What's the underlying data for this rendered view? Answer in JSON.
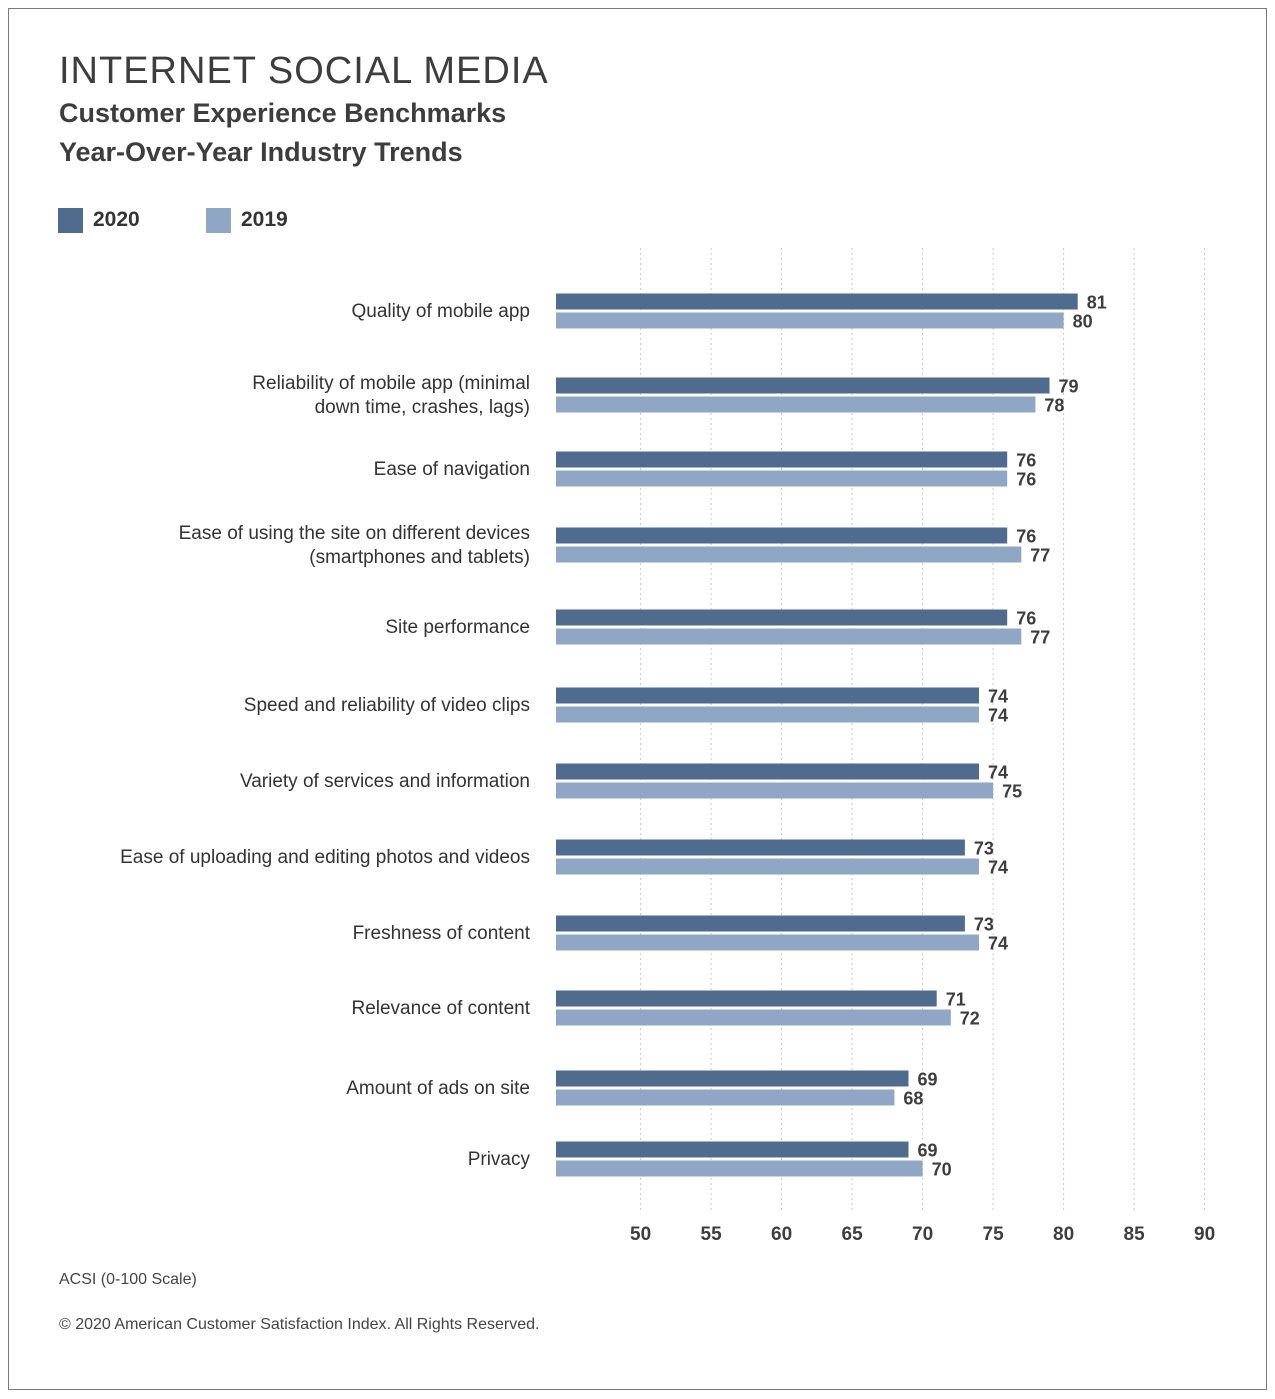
{
  "header": {
    "title": "INTERNET SOCIAL MEDIA",
    "subtitle_1": "Customer Experience Benchmarks",
    "subtitle_2": "Year-Over-Year Industry Trends"
  },
  "legend": [
    {
      "label": "2020",
      "color": "#4f6b8e"
    },
    {
      "label": "2019",
      "color": "#8fa7c4"
    }
  ],
  "footer": {
    "scale_note": "ACSI (0-100 Scale)",
    "copyright": "© 2020 American Customer Satisfaction Index. All Rights Reserved."
  },
  "chart_data": {
    "type": "bar",
    "orientation": "horizontal",
    "categories": [
      [
        "Quality of mobile app"
      ],
      [
        "Reliability of mobile app (minimal",
        "down time, crashes, lags)"
      ],
      [
        "Ease of navigation"
      ],
      [
        "Ease of using the site on different devices",
        "(smartphones and tablets)"
      ],
      [
        "Site performance"
      ],
      [
        "Speed and reliability of video clips"
      ],
      [
        "Variety of services and information"
      ],
      [
        "Ease of uploading and editing photos and videos"
      ],
      [
        "Freshness of content"
      ],
      [
        "Relevance of content"
      ],
      [
        "Amount of ads on site"
      ],
      [
        "Privacy"
      ]
    ],
    "series": [
      {
        "name": "2020",
        "color": "#4f6b8e",
        "values": [
          81,
          79,
          76,
          76,
          76,
          74,
          74,
          73,
          73,
          71,
          69,
          69
        ]
      },
      {
        "name": "2019",
        "color": "#8fa7c4",
        "values": [
          80,
          78,
          76,
          77,
          77,
          74,
          75,
          74,
          74,
          72,
          68,
          70
        ]
      }
    ],
    "x_ticks": [
      50,
      55,
      60,
      65,
      70,
      75,
      80,
      85,
      90
    ],
    "xlim": [
      44,
      90
    ],
    "grid": true,
    "legend_position": "top-left"
  }
}
